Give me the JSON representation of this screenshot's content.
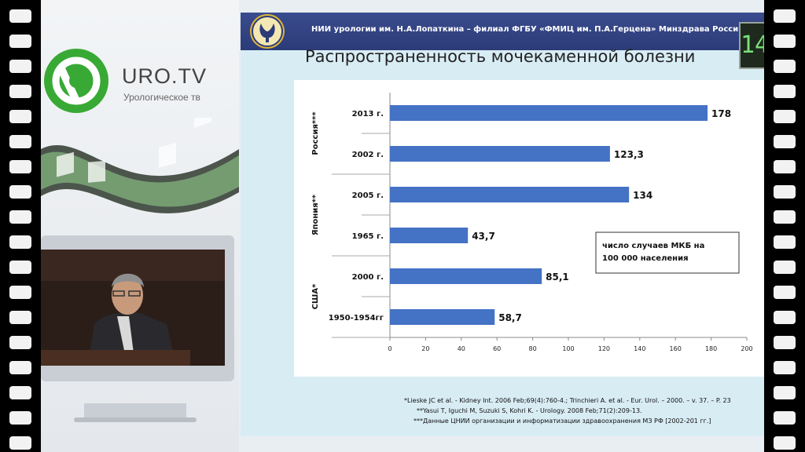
{
  "branding": {
    "logo_text": "URO.TV",
    "logo_subtitle": "Урологическое тв"
  },
  "slide": {
    "header": "НИИ урологии им. Н.А.Лопаткина – филиал ФГБУ «ФМИЦ им. П.А.Герцена» Минздрава России",
    "page_number": "14",
    "title": "Распространенность мочекаменной болезни",
    "references": [
      "*Lieske JC et al. - Kidney Int. 2006 Feb;69(4):760-4.;     Trinchieri A. et al. -  Eur. Urol. – 2000. – v. 37. – P. 23",
      "**Yasui T, Iguchi M, Suzuki S, Kohri K. - Urology. 2008 Feb;71(2):209-13.",
      "***Данные ЦНИИ организации и информатизации здравоохранения МЗ РФ [2002-201  гг.]"
    ]
  },
  "chart_data": {
    "type": "bar",
    "orientation": "horizontal",
    "groups": [
      {
        "label": "Россия***",
        "categories": [
          "2013 г.",
          "2002 г."
        ],
        "values": [
          178,
          123.3
        ],
        "value_labels": [
          "178",
          "123,3"
        ]
      },
      {
        "label": "Япония**",
        "categories": [
          "2005 г.",
          "1965 г."
        ],
        "values": [
          134,
          43.7
        ],
        "value_labels": [
          "134",
          "43,7"
        ]
      },
      {
        "label": "США*",
        "categories": [
          "2000 г.",
          "1950-1954гг"
        ],
        "values": [
          85.1,
          58.7
        ],
        "value_labels": [
          "85,1",
          "58,7"
        ]
      }
    ],
    "xlim": [
      0,
      200
    ],
    "xticks": [
      0,
      20,
      40,
      60,
      80,
      100,
      120,
      140,
      160,
      180,
      200
    ],
    "annotation": "число случаев МКБ на 100 000 населения",
    "bar_color": "#4472c4",
    "grid": false
  }
}
